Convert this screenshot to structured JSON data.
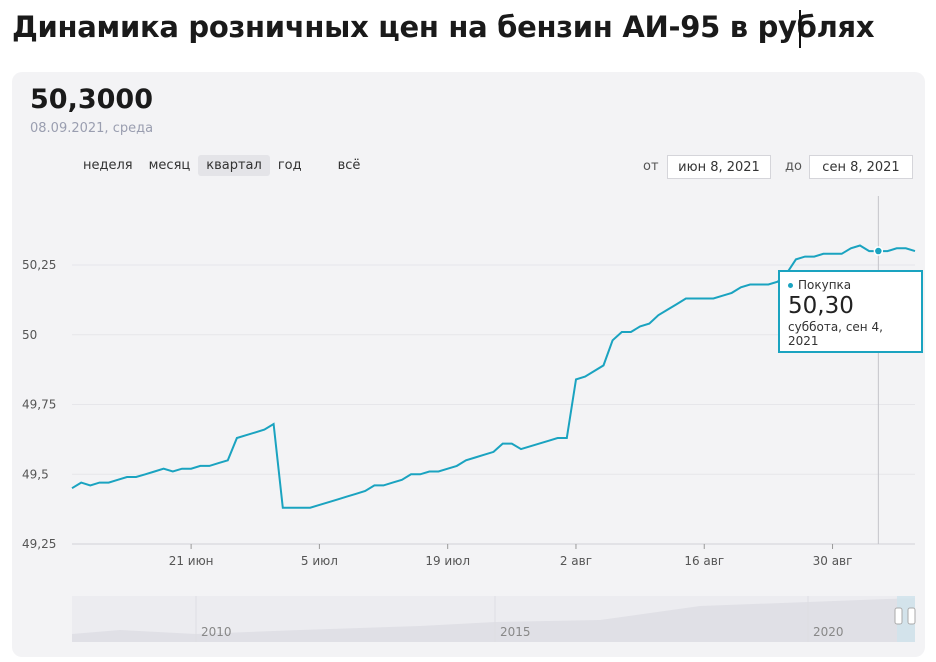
{
  "page": {
    "title": "Динамика розничных цен на бензин АИ-95 в рублях"
  },
  "header": {
    "value": "50,3000",
    "date": "08.09.2021, среда"
  },
  "range_buttons": [
    {
      "label": "неделя",
      "active": false
    },
    {
      "label": "месяц",
      "active": false
    },
    {
      "label": "квартал",
      "active": true
    },
    {
      "label": "год",
      "active": false
    },
    {
      "label": "всё",
      "active": false
    }
  ],
  "date_range": {
    "from_label": "от",
    "from_value": "июн 8, 2021",
    "to_label": "до",
    "to_value": "сен 8, 2021"
  },
  "tooltip": {
    "series": "Покупка",
    "value": "50,30",
    "date": "суббота, сен 4, 2021"
  },
  "navigator": {
    "years": [
      "2010",
      "2015",
      "2020"
    ]
  },
  "colors": {
    "line": "#1aa3c0",
    "grid": "#e6e6ea",
    "card": "#f3f3f5"
  },
  "chart_data": {
    "type": "line",
    "ylim": [
      49.25,
      50.35
    ],
    "y_ticks": [
      {
        "value": 50.25,
        "label": "50,25"
      },
      {
        "value": 50,
        "label": "50"
      },
      {
        "value": 49.75,
        "label": "49,75"
      },
      {
        "value": 49.5,
        "label": "49,5"
      },
      {
        "value": 49.25,
        "label": "49,25"
      }
    ],
    "x_ticks": [
      {
        "day": 13,
        "label": "21 июн"
      },
      {
        "day": 27,
        "label": "5 июл"
      },
      {
        "day": 41,
        "label": "19 июл"
      },
      {
        "day": 55,
        "label": "2 авг"
      },
      {
        "day": 69,
        "label": "16 авг"
      },
      {
        "day": 83,
        "label": "30 авг"
      }
    ],
    "xlim": [
      0,
      92
    ],
    "series": [
      {
        "name": "Покупка",
        "points": [
          [
            0,
            49.45
          ],
          [
            1,
            49.47
          ],
          [
            2,
            49.46
          ],
          [
            3,
            49.47
          ],
          [
            4,
            49.47
          ],
          [
            5,
            49.48
          ],
          [
            6,
            49.49
          ],
          [
            7,
            49.49
          ],
          [
            8,
            49.5
          ],
          [
            9,
            49.51
          ],
          [
            10,
            49.52
          ],
          [
            11,
            49.51
          ],
          [
            12,
            49.52
          ],
          [
            13,
            49.52
          ],
          [
            14,
            49.53
          ],
          [
            15,
            49.53
          ],
          [
            16,
            49.54
          ],
          [
            17,
            49.55
          ],
          [
            18,
            49.63
          ],
          [
            19,
            49.64
          ],
          [
            20,
            49.65
          ],
          [
            21,
            49.66
          ],
          [
            22,
            49.68
          ],
          [
            23,
            49.38
          ],
          [
            24,
            49.38
          ],
          [
            25,
            49.38
          ],
          [
            26,
            49.38
          ],
          [
            27,
            49.39
          ],
          [
            28,
            49.4
          ],
          [
            29,
            49.41
          ],
          [
            30,
            49.42
          ],
          [
            31,
            49.43
          ],
          [
            32,
            49.44
          ],
          [
            33,
            49.46
          ],
          [
            34,
            49.46
          ],
          [
            35,
            49.47
          ],
          [
            36,
            49.48
          ],
          [
            37,
            49.5
          ],
          [
            38,
            49.5
          ],
          [
            39,
            49.51
          ],
          [
            40,
            49.51
          ],
          [
            41,
            49.52
          ],
          [
            42,
            49.53
          ],
          [
            43,
            49.55
          ],
          [
            44,
            49.56
          ],
          [
            45,
            49.57
          ],
          [
            46,
            49.58
          ],
          [
            47,
            49.61
          ],
          [
            48,
            49.61
          ],
          [
            49,
            49.59
          ],
          [
            50,
            49.6
          ],
          [
            51,
            49.61
          ],
          [
            52,
            49.62
          ],
          [
            53,
            49.63
          ],
          [
            54,
            49.63
          ],
          [
            55,
            49.84
          ],
          [
            56,
            49.85
          ],
          [
            57,
            49.87
          ],
          [
            58,
            49.89
          ],
          [
            59,
            49.98
          ],
          [
            60,
            50.01
          ],
          [
            61,
            50.01
          ],
          [
            62,
            50.03
          ],
          [
            63,
            50.04
          ],
          [
            64,
            50.07
          ],
          [
            65,
            50.09
          ],
          [
            66,
            50.11
          ],
          [
            67,
            50.13
          ],
          [
            68,
            50.13
          ],
          [
            69,
            50.13
          ],
          [
            70,
            50.13
          ],
          [
            71,
            50.14
          ],
          [
            72,
            50.15
          ],
          [
            73,
            50.17
          ],
          [
            74,
            50.18
          ],
          [
            75,
            50.18
          ],
          [
            76,
            50.18
          ],
          [
            77,
            50.19
          ],
          [
            78,
            50.22
          ],
          [
            79,
            50.27
          ],
          [
            80,
            50.28
          ],
          [
            81,
            50.28
          ],
          [
            82,
            50.29
          ],
          [
            83,
            50.29
          ],
          [
            84,
            50.29
          ],
          [
            85,
            50.31
          ],
          [
            86,
            50.32
          ],
          [
            87,
            50.3
          ],
          [
            88,
            50.3
          ],
          [
            89,
            50.3
          ],
          [
            90,
            50.31
          ],
          [
            91,
            50.31
          ],
          [
            92,
            50.3
          ]
        ],
        "highlight_day": 88
      }
    ]
  }
}
